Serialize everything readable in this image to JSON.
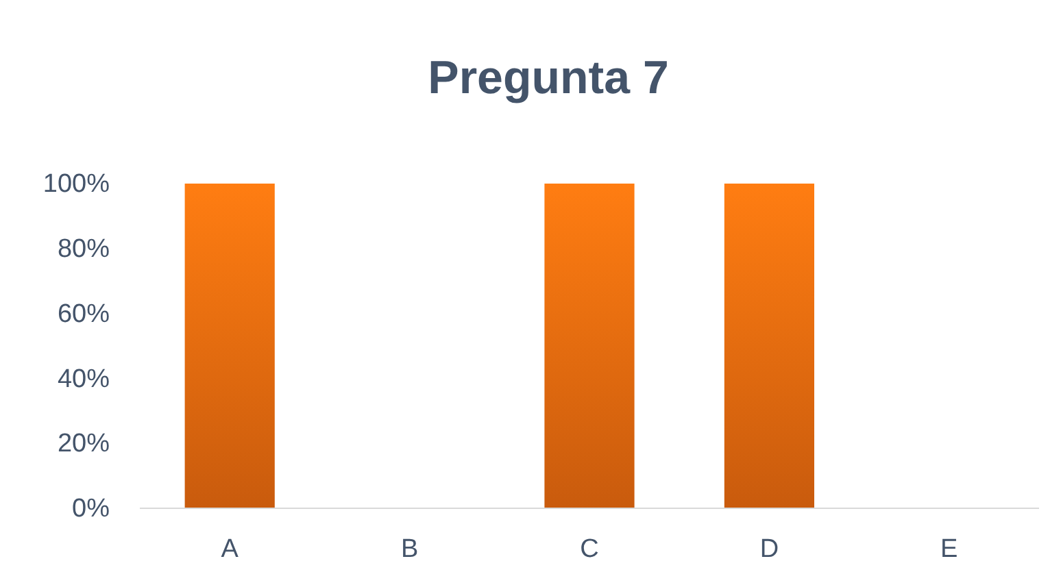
{
  "chart_data": {
    "type": "bar",
    "title": "Pregunta 7",
    "categories": [
      "A",
      "B",
      "C",
      "D",
      "E"
    ],
    "values": [
      100,
      0,
      100,
      100,
      0
    ],
    "color": "#e8690f",
    "ylim": [
      0,
      100
    ],
    "yticks": [
      {
        "value": 0,
        "label": "0%"
      },
      {
        "value": 20,
        "label": "20%"
      },
      {
        "value": 40,
        "label": "40%"
      },
      {
        "value": 60,
        "label": "60%"
      },
      {
        "value": 80,
        "label": "80%"
      },
      {
        "value": 100,
        "label": "100%"
      }
    ],
    "grid": false
  }
}
